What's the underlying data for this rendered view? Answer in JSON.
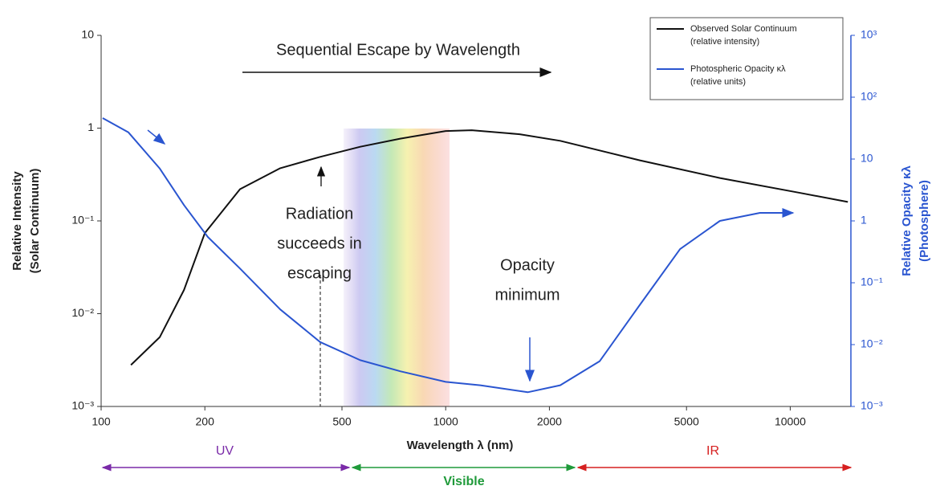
{
  "chart_data": {
    "type": "line",
    "x_label": "Wavelength λ (nm)",
    "y_label": [
      "Relative Intensity",
      "(Solar Continuum)"
    ],
    "y2_label": [
      "Relative Opacity κλ",
      "(Photosphere)"
    ],
    "x_scale": "log",
    "y_scale": "log",
    "y2_scale": "log",
    "xlim": [
      100,
      15000
    ],
    "xticks": [
      100,
      200,
      500,
      1000,
      2000,
      5000,
      10000
    ],
    "ylim": [
      0.001,
      10
    ],
    "yticks": [
      {
        "value": 0.001,
        "label": "10⁻³"
      },
      {
        "value": 0.01,
        "label": "10⁻²"
      },
      {
        "value": 0.1,
        "label": "10⁻¹"
      },
      1,
      10
    ],
    "y2lim": [
      0.001,
      1000
    ],
    "y2ticks": [
      {
        "value": 0.001,
        "label": "10⁻³"
      },
      {
        "value": 0.01,
        "label": "10⁻²"
      },
      {
        "value": 0.1,
        "label": "10⁻¹"
      },
      1,
      10,
      {
        "value": 100,
        "label": "10²"
      },
      {
        "value": 1000,
        "label": "10³"
      }
    ],
    "legend": "upper right",
    "series": [
      {
        "name": "Observed Solar Continuum",
        "subname": "(relative intensity)",
        "color": "#111111",
        "x": [
          122,
          148,
          174,
          200,
          253,
          331,
          432,
          565,
          738,
          1000,
          1190,
          1640,
          2150,
          3660,
          6250,
          10700,
          14700
        ],
        "values": [
          0.0028,
          0.0056,
          0.018,
          0.074,
          0.22,
          0.37,
          0.49,
          0.63,
          0.77,
          0.93,
          0.95,
          0.86,
          0.73,
          0.45,
          0.29,
          0.2,
          0.16
        ]
      },
      {
        "name": "Photospheric Opacity κλ",
        "subname": "(relative units)",
        "color": "#2a55d0",
        "axis": "y2",
        "x": [
          101,
          120,
          148,
          174,
          204,
          253,
          331,
          432,
          565,
          738,
          1000,
          1260,
          1730,
          2150,
          2800,
          3660,
          4790,
          6250,
          8170,
          10000
        ],
        "values": [
          46,
          27,
          7,
          1.8,
          0.55,
          0.17,
          0.037,
          0.011,
          0.0056,
          0.0037,
          0.0025,
          0.0022,
          0.0017,
          0.0022,
          0.0054,
          0.044,
          0.35,
          1.0,
          1.35,
          1.35
        ]
      }
    ],
    "annotations": [
      {
        "text": [
          "Sequential Escape by Wavelength"
        ]
      },
      {
        "text": [
          "Radiation",
          "succeeds in",
          "escaping"
        ]
      },
      {
        "text": [
          "Opacity",
          "minimum"
        ]
      }
    ],
    "bands": [
      {
        "text": "UV",
        "color": "#7a2aa8"
      },
      {
        "text": "Visible",
        "color": "#1f9a3a"
      },
      {
        "text": "IR",
        "color": "#d62020"
      }
    ]
  }
}
